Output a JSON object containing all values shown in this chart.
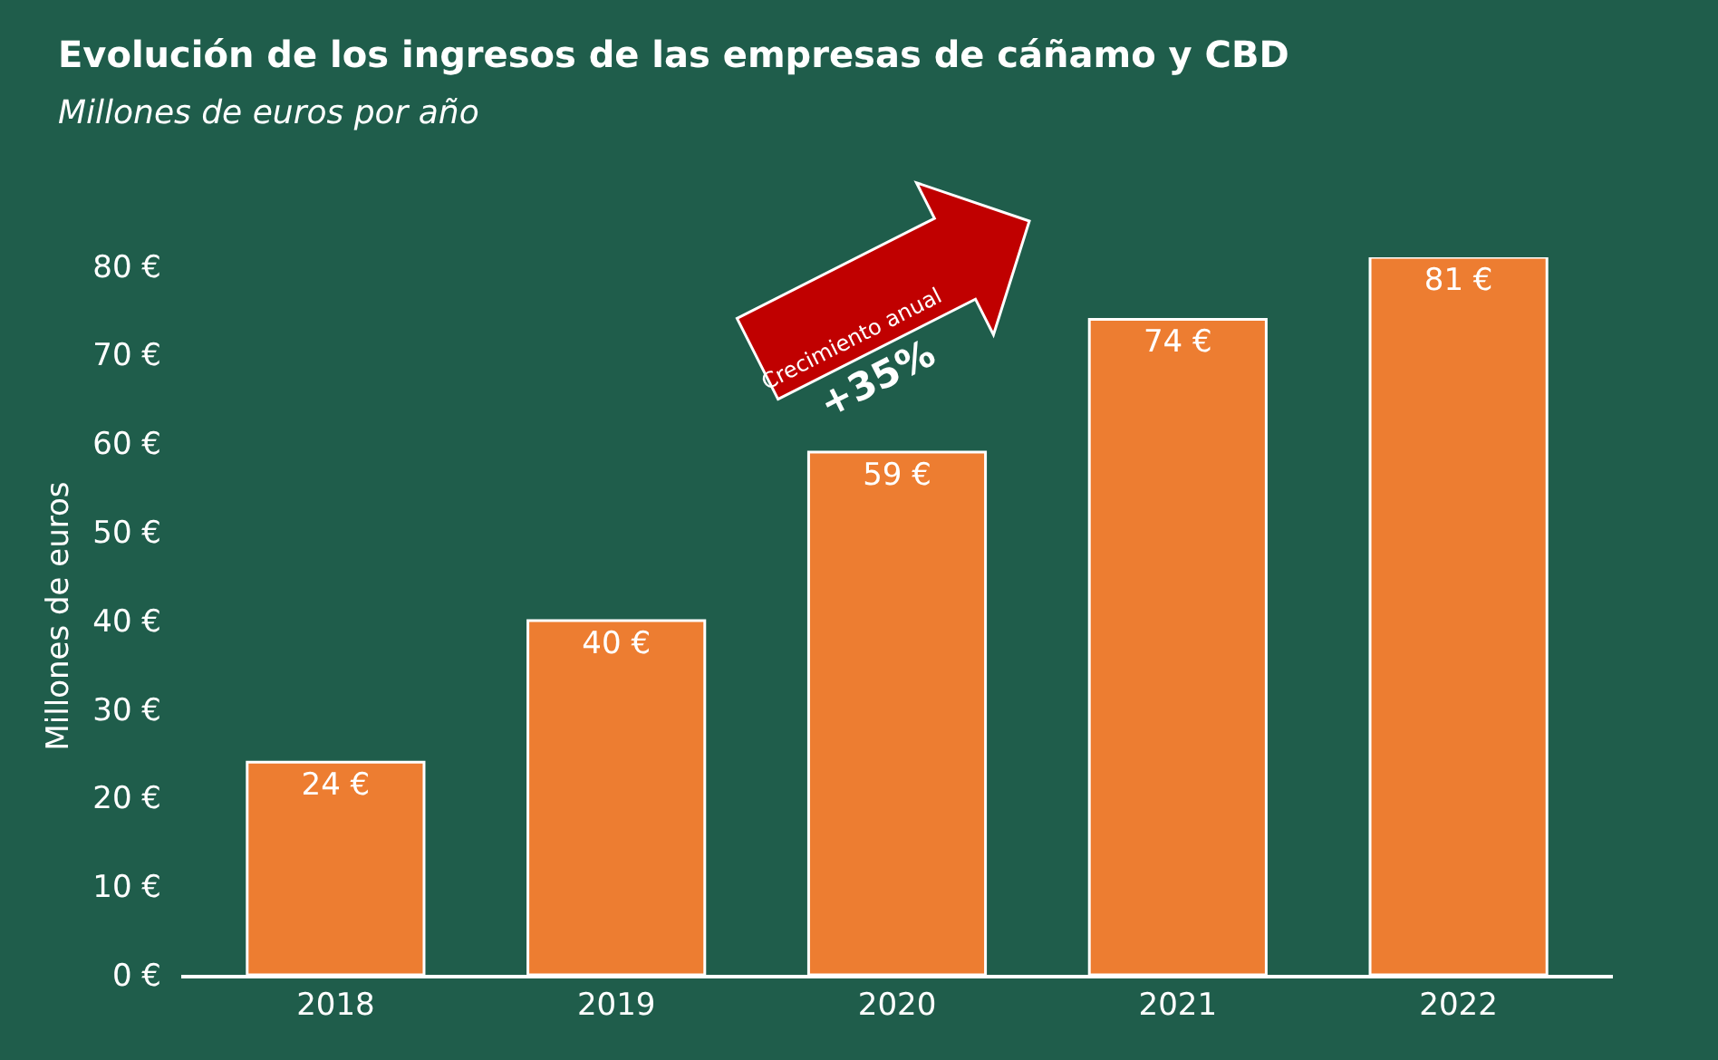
{
  "chart_data": {
    "type": "bar",
    "title": "Evolución de los ingresos de las empresas de cáñamo y CBD",
    "subtitle": "Millones de euros por año",
    "ylabel": "Millones de euros",
    "categories": [
      "2018",
      "2019",
      "2020",
      "2021",
      "2022"
    ],
    "values": [
      24,
      40,
      59,
      74,
      81
    ],
    "value_labels": [
      "24 €",
      "40 €",
      "59 €",
      "74 €",
      "81 €"
    ],
    "color": "#ed7d31",
    "ylim": [
      0,
      81
    ],
    "yticks": [
      {
        "value": 0,
        "label": "0 €"
      },
      {
        "value": 10,
        "label": "10 €"
      },
      {
        "value": 20,
        "label": "20 €"
      },
      {
        "value": 30,
        "label": "30 €"
      },
      {
        "value": 40,
        "label": "40 €"
      },
      {
        "value": 50,
        "label": "50 €"
      },
      {
        "value": 60,
        "label": "60 €"
      },
      {
        "value": 70,
        "label": "70 €"
      },
      {
        "value": 80,
        "label": "80 €"
      }
    ],
    "grid": false,
    "annotations": [
      "Crecimiento anual",
      "+35%"
    ]
  }
}
